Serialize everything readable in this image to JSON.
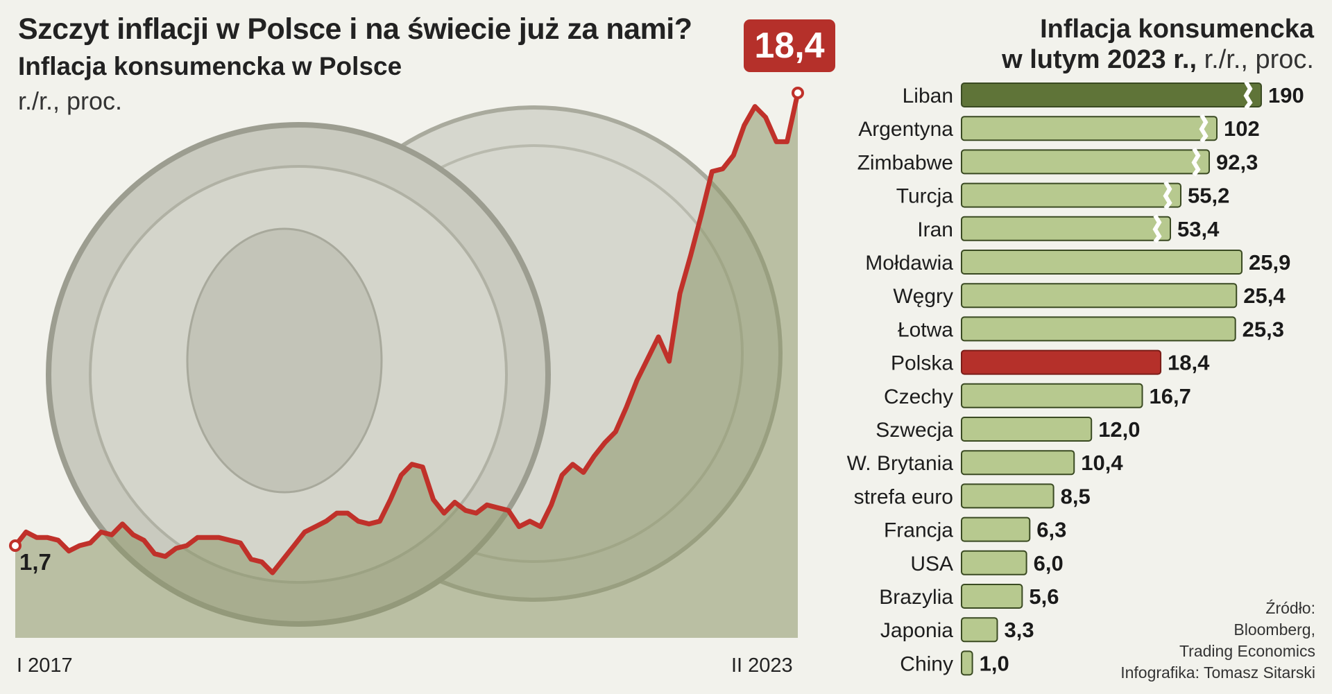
{
  "title": "Szczyt inflacji w Polsce i na świecie już za nami?",
  "subtitle": "Inflacja konsumencka w Polsce",
  "unit": "r./r., proc.",
  "final_value_label": "18,4",
  "start_value_label": "1,7",
  "x_start_label": "I 2017",
  "x_end_label": "II 2023",
  "right_title_line1": "Inflacja konsumencka",
  "right_title_line2_bold": "w lutym 2023 r.,",
  "right_title_line2_normal": " r./r., proc.",
  "source_lines": [
    "Źródło:",
    "Bloomberg,",
    "Trading Economics",
    "Infografika: Tomasz Sitarski"
  ],
  "colors": {
    "line": "#c0312a",
    "area": "#8c9568",
    "bar_default": "#b7c98f",
    "bar_border": "#3a4a22",
    "bar_top": "#5f7438",
    "bar_poland": "#b5302a",
    "coin": "#c9cabf"
  },
  "chart_data": [
    {
      "type": "line",
      "title": "Inflacja konsumencka w Polsce",
      "subtitle": "r./r., proc.",
      "series": [
        {
          "name": "Inflacja konsumencka w Polsce",
          "x": [
            "2017-01",
            "2017-02",
            "2017-03",
            "2017-04",
            "2017-05",
            "2017-06",
            "2017-07",
            "2017-08",
            "2017-09",
            "2017-10",
            "2017-11",
            "2017-12",
            "2018-01",
            "2018-02",
            "2018-03",
            "2018-04",
            "2018-05",
            "2018-06",
            "2018-07",
            "2018-08",
            "2018-09",
            "2018-10",
            "2018-11",
            "2018-12",
            "2019-01",
            "2019-02",
            "2019-03",
            "2019-04",
            "2019-05",
            "2019-06",
            "2019-07",
            "2019-08",
            "2019-09",
            "2019-10",
            "2019-11",
            "2019-12",
            "2020-01",
            "2020-02",
            "2020-03",
            "2020-04",
            "2020-05",
            "2020-06",
            "2020-07",
            "2020-08",
            "2020-09",
            "2020-10",
            "2020-11",
            "2020-12",
            "2021-01",
            "2021-02",
            "2021-03",
            "2021-04",
            "2021-05",
            "2021-06",
            "2021-07",
            "2021-08",
            "2021-09",
            "2021-10",
            "2021-11",
            "2021-12",
            "2022-01",
            "2022-02",
            "2022-03",
            "2022-04",
            "2022-05",
            "2022-06",
            "2022-07",
            "2022-08",
            "2022-09",
            "2022-10",
            "2022-11",
            "2022-12",
            "2023-01",
            "2023-02"
          ],
          "values": [
            1.7,
            2.2,
            2.0,
            2.0,
            1.9,
            1.5,
            1.7,
            1.8,
            2.2,
            2.1,
            2.5,
            2.1,
            1.9,
            1.4,
            1.3,
            1.6,
            1.7,
            2.0,
            2.0,
            2.0,
            1.9,
            1.8,
            1.2,
            1.1,
            0.7,
            1.2,
            1.7,
            2.2,
            2.4,
            2.6,
            2.9,
            2.9,
            2.6,
            2.5,
            2.6,
            3.4,
            4.3,
            4.7,
            4.6,
            3.4,
            2.9,
            3.3,
            3.0,
            2.9,
            3.2,
            3.1,
            3.0,
            2.4,
            2.6,
            2.4,
            3.2,
            4.3,
            4.7,
            4.4,
            5.0,
            5.5,
            5.9,
            6.8,
            7.8,
            8.6,
            9.4,
            8.5,
            11.0,
            12.4,
            13.9,
            15.5,
            15.6,
            16.1,
            17.2,
            17.9,
            17.5,
            16.6,
            16.6,
            18.4
          ]
        }
      ]
    },
    {
      "type": "bar",
      "orientation": "horizontal",
      "title": "Inflacja konsumencka w lutym 2023 r.",
      "subtitle": "r./r., proc.",
      "categories": [
        "Liban",
        "Argentyna",
        "Zimbabwe",
        "Turcja",
        "Iran",
        "Mołdawia",
        "Węgry",
        "Łotwa",
        "Polska",
        "Czechy",
        "Szwecja",
        "W. Brytania",
        "strefa euro",
        "Francja",
        "USA",
        "Brazylia",
        "Japonia",
        "Chiny"
      ],
      "values": [
        190,
        102,
        92.3,
        55.2,
        53.4,
        25.9,
        25.4,
        25.3,
        18.4,
        16.7,
        12.0,
        10.4,
        8.5,
        6.3,
        6.0,
        5.6,
        3.3,
        1.0
      ],
      "value_labels": [
        "190",
        "102",
        "92,3",
        "55,2",
        "53,4",
        "25,9",
        "25,4",
        "25,3",
        "18,4",
        "16,7",
        "12,0",
        "10,4",
        "8,5",
        "6,3",
        "6,0",
        "5,6",
        "3,3",
        "1,0"
      ],
      "broken_axis_bars": [
        "Liban",
        "Argentyna",
        "Zimbabwe",
        "Turcja",
        "Iran"
      ],
      "highlight": "Polska"
    }
  ]
}
